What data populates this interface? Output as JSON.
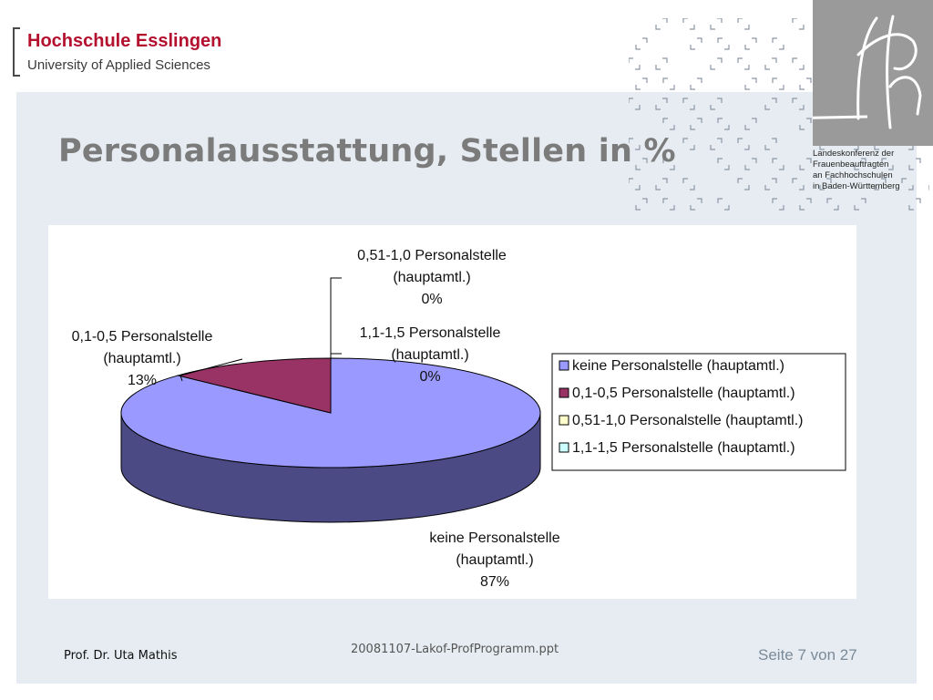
{
  "logo": {
    "line1": "Hochschule Esslingen",
    "line2": "University of Applied Sciences"
  },
  "lakof": {
    "text": "Landeskonferenz der\nFrauenbeauftragten\nan Fachhochschulen\nin Baden-Württemberg"
  },
  "title": "Personalausstattung, Stellen in %",
  "chart_data": {
    "type": "pie",
    "title": "",
    "slices": [
      {
        "name": "keine Personalstelle (hauptamtl.)",
        "value": 87,
        "label": "87%",
        "color": "#9999ff",
        "side_color": "#4b4a85",
        "label_lines": [
          "keine Personalstelle",
          "(hauptamtl.)",
          "87%"
        ]
      },
      {
        "name": "0,1-0,5 Personalstelle (hauptamtl.)",
        "value": 13,
        "label": "13%",
        "color": "#993366",
        "side_color": "#5a1f3d",
        "label_lines": [
          "0,1-0,5 Personalstelle",
          "(hauptamtl.)",
          "13%"
        ]
      },
      {
        "name": "0,51-1,0 Personalstelle (hauptamtl.)",
        "value": 0,
        "label": "0%",
        "color": "#ffffcc",
        "side_color": "#cccc99",
        "label_lines": [
          "0,51-1,0 Personalstelle",
          "(hauptamtl.)",
          "0%"
        ]
      },
      {
        "name": "1,1-1,5 Personalstelle (hauptamtl.)",
        "value": 0,
        "label": "0%",
        "color": "#ccffff",
        "side_color": "#99cccc",
        "label_lines": [
          "1,1-1,5 Personalstelle",
          "(hauptamtl.)",
          "0%"
        ]
      }
    ],
    "legend_position": "right",
    "style": "3d"
  },
  "footer": {
    "author": "Prof. Dr. Uta Mathis",
    "filename": "20081107-Lakof-ProfProgramm.ppt",
    "page": "Seite 7 von 27"
  }
}
